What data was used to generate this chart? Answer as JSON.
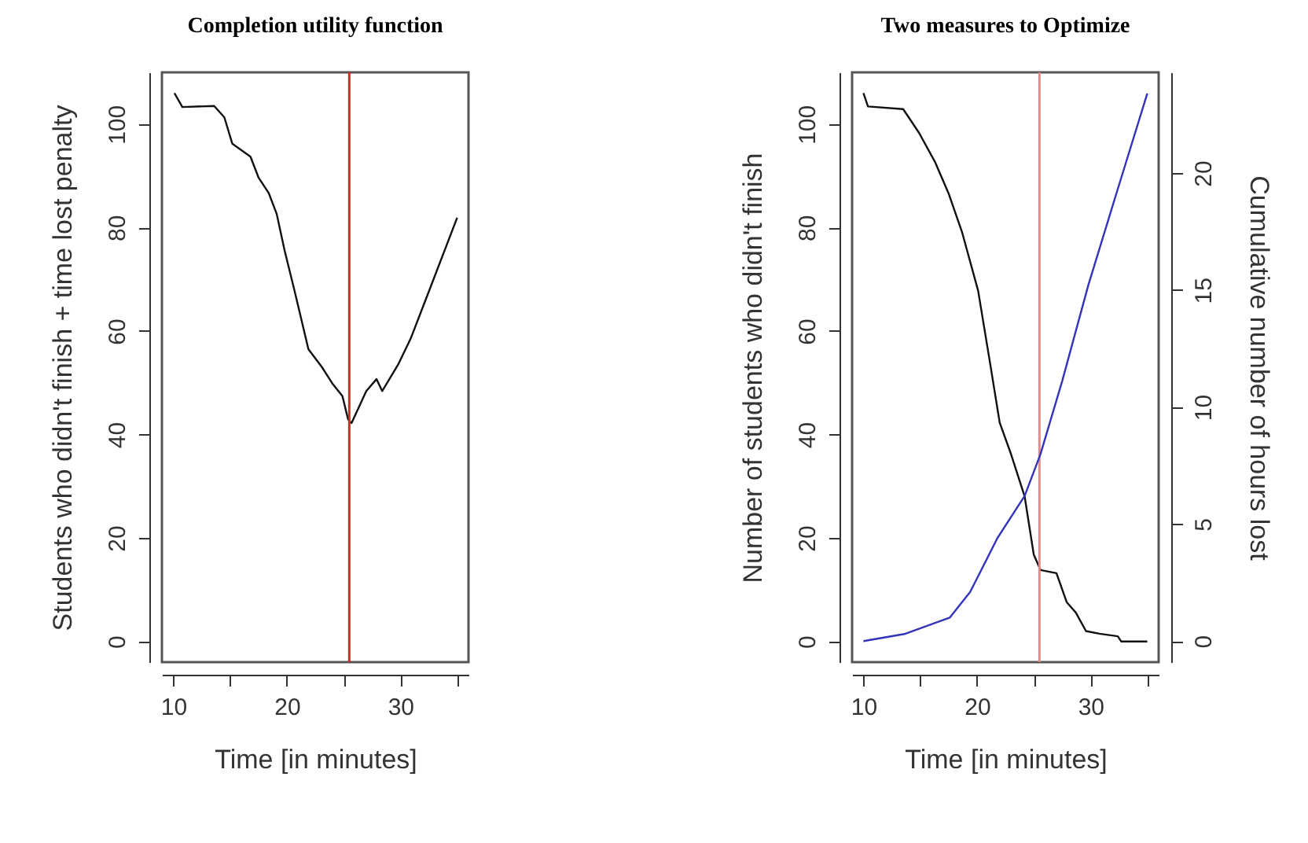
{
  "chart_data": [
    {
      "type": "line",
      "title": "Completion utility function",
      "xlabel": "Time [in minutes]",
      "ylabel": "Students who didn't finish + time lost penalty",
      "xlim": [
        9,
        36
      ],
      "xticks": [
        10,
        {
          "value": 15,
          "label": null
        },
        20,
        {
          "value": 25,
          "label": null
        },
        30,
        {
          "value": 35,
          "label": null
        }
      ],
      "ylim": [
        -4,
        110
      ],
      "yticks": [
        0,
        20,
        40,
        60,
        80,
        100
      ],
      "grid": false,
      "ref_lines": [
        {
          "axis": "x",
          "value": 25.5,
          "color": "#d42a2a"
        }
      ],
      "series": [
        {
          "color": "#111111",
          "x": [
            10.1,
            10.8,
            13.6,
            14.5,
            15.2,
            16.8,
            17.5,
            18.4,
            19.1,
            19.8,
            20.7,
            21.9,
            23.1,
            24.0,
            24.9,
            25.4,
            25.7,
            27.0,
            27.9,
            28.4,
            29.8,
            30.9,
            32.5,
            35.0
          ],
          "values": [
            106,
            103.3,
            103.5,
            101.3,
            96.2,
            93.7,
            89.7,
            86.7,
            82.7,
            75.6,
            67.6,
            56.5,
            53,
            49.9,
            47.4,
            42.9,
            42.2,
            48.4,
            50.7,
            48.4,
            53.5,
            58.5,
            67.6,
            81.9
          ]
        }
      ]
    },
    {
      "type": "line",
      "title": "Two measures to Optimize",
      "xlabel": "Time [in minutes]",
      "ylabel": "Number of students who didn't finish",
      "y2label": "Cumulative number of hours lost",
      "xlim": [
        9,
        36
      ],
      "xticks": [
        10,
        {
          "value": 15,
          "label": null
        },
        20,
        {
          "value": 25,
          "label": null
        },
        30,
        {
          "value": 35,
          "label": null
        }
      ],
      "ylim": [
        -4,
        110
      ],
      "yticks": [
        0,
        20,
        40,
        60,
        80,
        100
      ],
      "y2lim": [
        -0.9,
        24.3
      ],
      "y2ticks": [
        0,
        5,
        10,
        15,
        20
      ],
      "grid": false,
      "ref_lines": [
        {
          "axis": "x",
          "value": 25.5,
          "color": "#e58a8a"
        }
      ],
      "series": [
        {
          "color": "#111111",
          "x": [
            10.0,
            10.4,
            13.5,
            14.9,
            16.3,
            17.5,
            18.7,
            20.1,
            21.1,
            22.0,
            23.0,
            24.2,
            25.0,
            25.6,
            27.0,
            27.9,
            28.7,
            29.6,
            30.8,
            32.4,
            32.7,
            35.0
          ],
          "values": [
            106,
            103.4,
            102.9,
            98.3,
            92.7,
            86.6,
            79,
            67.8,
            54.5,
            42.3,
            36.2,
            28,
            16.8,
            13.8,
            13.2,
            7.6,
            5.6,
            2,
            1.5,
            1,
            0,
            0
          ]
        },
        {
          "color": "#3333bb",
          "axis": "y2",
          "x": [
            10.0,
            13.6,
            17.6,
            19.4,
            21.8,
            24.2,
            25.6,
            27.5,
            29.8,
            32.2,
            35.0
          ],
          "values": [
            0,
            0.3,
            1.0,
            2.1,
            4.4,
            6.2,
            8.0,
            11.1,
            15.2,
            19.0,
            23.4
          ]
        }
      ]
    }
  ]
}
